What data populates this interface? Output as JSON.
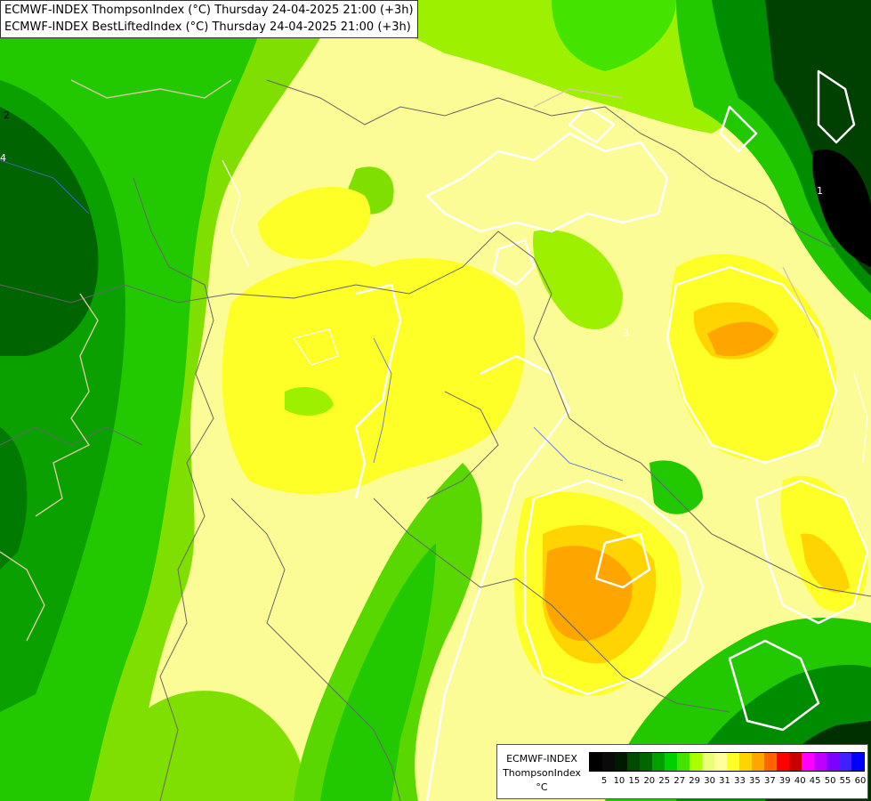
{
  "title": {
    "line1": "ECMWF-INDEX ThompsonIndex (°C) Thursday 24-04-2025 21:00 (+3h)",
    "line2": "ECMWF-INDEX BestLiftedIndex (°C) Thursday 24-04-2025 21:00 (+3h)"
  },
  "map": {
    "contour_labels": [
      {
        "text": "2"
      },
      {
        "text": "4"
      },
      {
        "text": "3"
      },
      {
        "text": "1"
      }
    ]
  },
  "legend": {
    "model": "ECMWF-INDEX",
    "index": "ThompsonIndex",
    "unit": "°C",
    "colors": [
      "#000000",
      "#0a0a0a",
      "#001a00",
      "#004a00",
      "#006600",
      "#00a000",
      "#00d000",
      "#44e400",
      "#a8ff00",
      "#eaff78",
      "#ffff9c",
      "#ffff28",
      "#ffd400",
      "#ffa500",
      "#ff6400",
      "#ff0000",
      "#c80000",
      "#ff00ff",
      "#c000ff",
      "#8000ff",
      "#4020ff",
      "#0000ff"
    ],
    "ticks": [
      "5",
      "10",
      "15",
      "20",
      "25",
      "27",
      "29",
      "30",
      "31",
      "33",
      "35",
      "37",
      "39",
      "40",
      "45",
      "50",
      "55",
      "60"
    ]
  }
}
